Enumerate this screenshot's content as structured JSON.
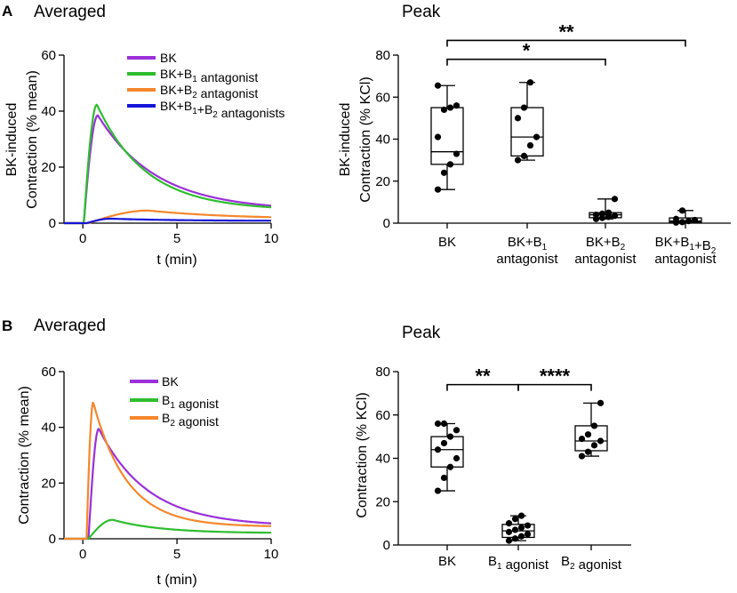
{
  "chart_data": [
    {
      "id": "A-averaged",
      "panel": "A",
      "type": "line",
      "title": "Averaged",
      "xlabel": "t (min)",
      "ylabel": [
        "BK-induced",
        "Contraction (% mean)"
      ],
      "xlim": [
        -1,
        10
      ],
      "ylim": [
        0,
        60
      ],
      "xticks": [
        0,
        5,
        10
      ],
      "yticks": [
        0,
        20,
        40,
        60
      ],
      "series": [
        {
          "name": "BK",
          "color": "#9b30d9",
          "onset": 0.05,
          "peak_t": 0.8,
          "peak": 38.5,
          "tau": 3.1,
          "tail": 4.5
        },
        {
          "name": "BK+B1 antagonist",
          "sub": "1",
          "color": "#2ebd2e",
          "onset": 0.05,
          "peak_t": 0.75,
          "peak": 42.3,
          "tau": 2.6,
          "tail": 4.6
        },
        {
          "name": "BK+B2 antagonist",
          "sub": "2",
          "color": "#f5872c",
          "onset": 0.3,
          "peak_t": 3.5,
          "peak": 4.5,
          "tau": 4.5,
          "tail": 1.4
        },
        {
          "name": "BK+B1+B2 antagonists",
          "color": "#1515d9",
          "onset": 0.2,
          "peak_t": 1.5,
          "peak": 1.6,
          "tau": 3.5,
          "tail": 0.8
        }
      ]
    },
    {
      "id": "A-peak",
      "panel": "A",
      "type": "box",
      "title": "Peak",
      "ylabel": [
        "BK-induced",
        "Contraction (% KCl)"
      ],
      "ylim": [
        0,
        80
      ],
      "yticks": [
        0,
        20,
        40,
        60,
        80
      ],
      "categories": [
        "BK",
        "BK+B1 antagonist",
        "BK+B2 antagonist",
        "BK+B1+B2 antagonist"
      ],
      "boxes": [
        {
          "min": 16,
          "q1": 28,
          "median": 34,
          "q3": 55,
          "max": 65.5,
          "points": [
            16,
            24,
            28,
            33,
            41,
            54,
            55,
            56,
            65.5
          ]
        },
        {
          "min": 30,
          "q1": 32,
          "median": 41,
          "q3": 55,
          "max": 67,
          "points": [
            30,
            32,
            37,
            41,
            50,
            55,
            67
          ]
        },
        {
          "min": 2,
          "q1": 2.6,
          "median": 4,
          "q3": 5,
          "max": 11.5,
          "points": [
            2,
            2.5,
            3,
            3.5,
            4,
            4.5,
            5,
            11.5
          ]
        },
        {
          "min": 0.3,
          "q1": 0.5,
          "median": 1,
          "q3": 2.5,
          "max": 6,
          "points": [
            0.3,
            0.5,
            1,
            1.5,
            2,
            6
          ]
        }
      ],
      "comparisons": [
        {
          "from": 0,
          "to": 3,
          "label": "**",
          "y": 87
        },
        {
          "from": 0,
          "to": 2,
          "label": "*",
          "y": 78
        }
      ]
    },
    {
      "id": "B-averaged",
      "panel": "B",
      "type": "line",
      "title": "Averaged",
      "xlabel": "t (min)",
      "ylabel": [
        "Contraction (% mean)"
      ],
      "xlim": [
        -1,
        10
      ],
      "ylim": [
        0,
        60
      ],
      "xticks": [
        0,
        5,
        10
      ],
      "yticks": [
        0,
        20,
        40,
        60
      ],
      "series": [
        {
          "name": "BK",
          "color": "#9b30d9",
          "onset": 0.3,
          "peak_t": 0.85,
          "peak": 39.5,
          "tau": 2.6,
          "tail": 4.5
        },
        {
          "name": "B1 agonist",
          "sub": "1",
          "color": "#2ebd2e",
          "onset": 0.3,
          "peak_t": 1.6,
          "peak": 6.8,
          "tau": 2.5,
          "tail": 2.0
        },
        {
          "name": "B2 agonist",
          "sub": "2",
          "color": "#f5872c",
          "onset": 0.2,
          "peak_t": 0.55,
          "peak": 49.0,
          "tau": 1.8,
          "tail": 4.3
        }
      ]
    },
    {
      "id": "B-peak",
      "panel": "B",
      "type": "box",
      "title": "Peak",
      "ylabel": [
        "Contraction (% KCl)"
      ],
      "ylim": [
        0,
        80
      ],
      "yticks": [
        0,
        20,
        40,
        60,
        80
      ],
      "categories": [
        "BK",
        "B1 agonist",
        "B2 agonist"
      ],
      "boxes": [
        {
          "min": 25,
          "q1": 36,
          "median": 44,
          "q3": 50,
          "max": 56,
          "points": [
            25,
            31,
            36,
            40,
            44,
            47,
            50,
            53,
            56,
            56
          ]
        },
        {
          "min": 2,
          "q1": 3.5,
          "median": 6.5,
          "q3": 9.5,
          "max": 13.5,
          "points": [
            2,
            3,
            4,
            5,
            6,
            7,
            8,
            9,
            10,
            12,
            13.5
          ]
        },
        {
          "min": 41,
          "q1": 43.5,
          "median": 48,
          "q3": 55,
          "max": 65.5,
          "points": [
            41,
            43,
            46,
            48,
            49,
            51,
            55,
            65.5
          ]
        }
      ],
      "comparisons": [
        {
          "from": 0,
          "to": 1,
          "label": "**",
          "y": 74
        },
        {
          "from": 1,
          "to": 2,
          "label": "****",
          "y": 74
        }
      ]
    }
  ],
  "labels": {
    "A": {
      "letter": "A",
      "left_title": "Averaged",
      "right_title": "Peak",
      "legend": [
        "BK",
        "BK+B1 antagonist",
        "BK+B2 antagonist",
        "BK+B1+B2 antagonists"
      ],
      "box_xlabels": [
        [
          "BK"
        ],
        [
          "BK+B1",
          "antagonist"
        ],
        [
          "BK+B2",
          "antagonist"
        ],
        [
          "BK+B1+B2",
          "antagonist"
        ]
      ]
    },
    "B": {
      "letter": "B",
      "left_title": "Averaged",
      "right_title": "Peak",
      "legend": [
        "BK",
        "B1 agonist",
        "B2 agonist"
      ],
      "box_xlabels": [
        [
          "BK"
        ],
        [
          "B1 agonist"
        ],
        [
          "B2 agonist"
        ]
      ]
    }
  }
}
